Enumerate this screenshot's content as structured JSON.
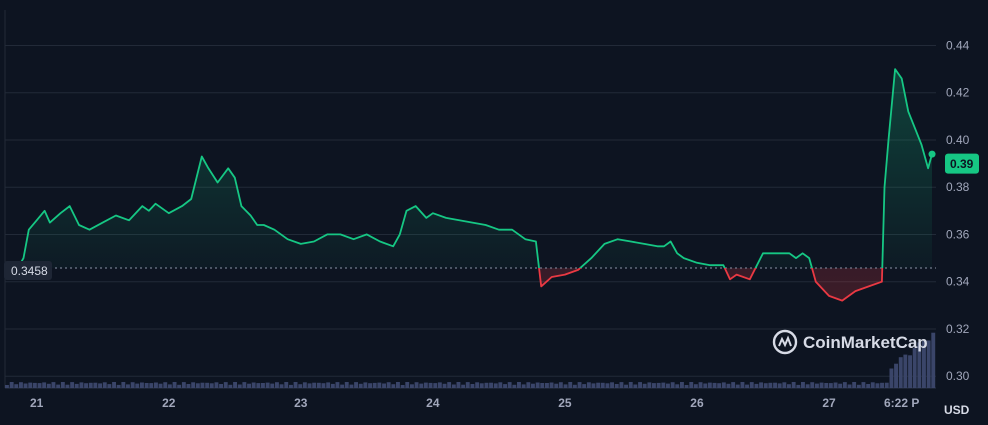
{
  "chart_data": {
    "type": "line",
    "title": "",
    "xlabel": "",
    "ylabel": "",
    "y_unit": "USD",
    "ylim": [
      0.295,
      0.455
    ],
    "y_ticks": [
      "0.30",
      "0.32",
      "0.34",
      "0.36",
      "0.38",
      "0.40",
      "0.42",
      "0.44"
    ],
    "x_ticks": [
      "21",
      "22",
      "23",
      "24",
      "25",
      "26",
      "27",
      "6:22 P"
    ],
    "x_tick_days": [
      21,
      22,
      23,
      24,
      25,
      26,
      27,
      27.55
    ],
    "xlim": [
      20.76,
      27.81
    ],
    "grid": true,
    "baseline": 0.3458,
    "baseline_label": "0.3458",
    "current_value": 0.39,
    "current_label": "0.39",
    "colors": {
      "up": "#16c784",
      "down": "#ea3943",
      "volume": "#3a4569"
    },
    "watermark": "CoinMarketCap",
    "series": [
      {
        "x": [
          20.76,
          20.84,
          20.9,
          20.94,
          21.0,
          21.06,
          21.1,
          21.18,
          21.25,
          21.32,
          21.4,
          21.5,
          21.6,
          21.7,
          21.8,
          21.85,
          21.9,
          22.0,
          22.1,
          22.17,
          22.25,
          22.3,
          22.37,
          22.45,
          22.5,
          22.55,
          22.62,
          22.67,
          22.72,
          22.8,
          22.9,
          23.0,
          23.1,
          23.2,
          23.3,
          23.4,
          23.5,
          23.6,
          23.7,
          23.75,
          23.8,
          23.87,
          23.95,
          24.0,
          24.1,
          24.2,
          24.3,
          24.4,
          24.5,
          24.6,
          24.7,
          24.78,
          24.82,
          24.9,
          25.0,
          25.1,
          25.2,
          25.3,
          25.4,
          25.5,
          25.6,
          25.7,
          25.75,
          25.8,
          25.85,
          25.9,
          26.0,
          26.1,
          26.2,
          26.25,
          26.3,
          26.4,
          26.5,
          26.6,
          26.7,
          26.75,
          26.8,
          26.85,
          26.9,
          27.0,
          27.1,
          27.2,
          27.3,
          27.4,
          27.42,
          27.45,
          27.5,
          27.55,
          27.6,
          27.65,
          27.7,
          27.75,
          27.78
        ],
        "y": [
          0.342,
          0.344,
          0.35,
          0.362,
          0.366,
          0.37,
          0.365,
          0.369,
          0.372,
          0.364,
          0.362,
          0.365,
          0.368,
          0.366,
          0.372,
          0.37,
          0.373,
          0.369,
          0.372,
          0.375,
          0.393,
          0.388,
          0.382,
          0.388,
          0.384,
          0.372,
          0.368,
          0.364,
          0.364,
          0.362,
          0.358,
          0.356,
          0.357,
          0.36,
          0.36,
          0.358,
          0.36,
          0.357,
          0.355,
          0.36,
          0.37,
          0.372,
          0.367,
          0.369,
          0.367,
          0.366,
          0.365,
          0.364,
          0.362,
          0.362,
          0.358,
          0.357,
          0.338,
          0.342,
          0.343,
          0.345,
          0.35,
          0.356,
          0.358,
          0.357,
          0.356,
          0.355,
          0.355,
          0.357,
          0.352,
          0.35,
          0.348,
          0.347,
          0.347,
          0.341,
          0.343,
          0.341,
          0.352,
          0.352,
          0.352,
          0.35,
          0.352,
          0.35,
          0.34,
          0.334,
          0.332,
          0.336,
          0.338,
          0.34,
          0.38,
          0.4,
          0.43,
          0.426,
          0.412,
          0.405,
          0.398,
          0.388,
          0.394
        ]
      }
    ]
  }
}
